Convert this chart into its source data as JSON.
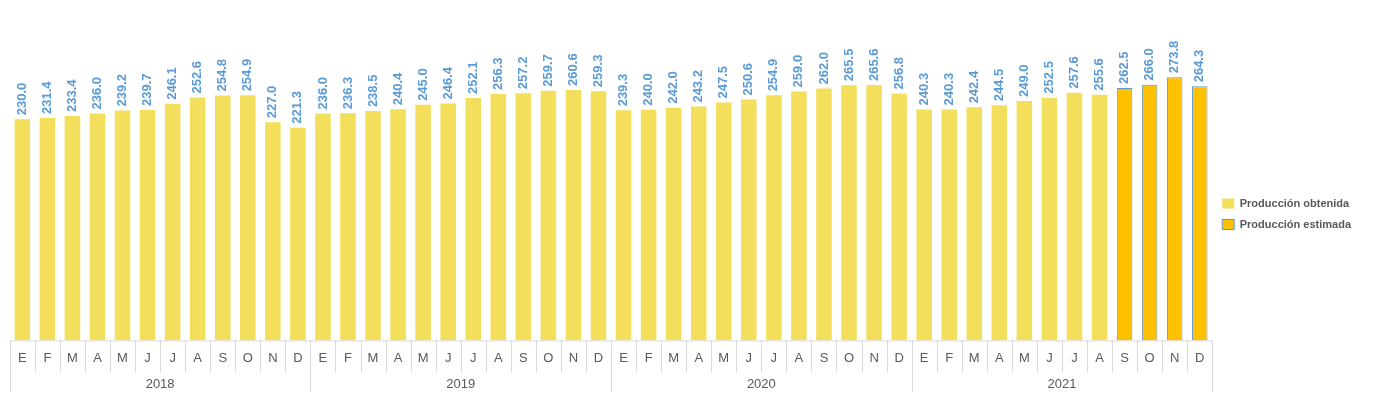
{
  "chart_data": {
    "type": "bar",
    "categories": [
      "E",
      "F",
      "M",
      "A",
      "M",
      "J",
      "J",
      "A",
      "S",
      "O",
      "N",
      "D",
      "E",
      "F",
      "M",
      "A",
      "M",
      "J",
      "J",
      "A",
      "S",
      "O",
      "N",
      "D",
      "E",
      "F",
      "M",
      "A",
      "M",
      "J",
      "J",
      "A",
      "S",
      "O",
      "N",
      "D",
      "E",
      "F",
      "M",
      "A",
      "M",
      "J",
      "J",
      "A",
      "S",
      "O",
      "N",
      "D"
    ],
    "series": [
      {
        "name": "Producción obtenida",
        "color": "#f3df5c",
        "values": [
          230.0,
          231.4,
          233.4,
          236.0,
          239.2,
          239.7,
          246.1,
          252.6,
          254.8,
          254.9,
          227.0,
          221.3,
          236.0,
          236.3,
          238.5,
          240.4,
          245.0,
          246.4,
          252.1,
          256.3,
          257.2,
          259.7,
          260.6,
          259.3,
          239.3,
          240.0,
          242.0,
          243.2,
          247.5,
          250.6,
          254.9,
          259.0,
          262.0,
          265.5,
          265.6,
          256.8,
          240.3,
          240.3,
          242.4,
          244.5,
          249.0,
          252.5,
          257.6,
          255.6,
          null,
          null,
          null,
          null
        ],
        "value_labels": [
          "230.0",
          "231.4",
          "233.4",
          "236.0",
          "239.2",
          "239.7",
          "246.1",
          "252.6",
          "254.8",
          "254.9",
          "227.0",
          "221.3",
          "236.0",
          "236.3",
          "238.5",
          "240.4",
          "245.0",
          "246.4",
          "252.1",
          "256.3",
          "257.2",
          "259.7",
          "260.6",
          "259.3",
          "239.3",
          "240.0",
          "242.0",
          "243.2",
          "247.5",
          "250.6",
          "254.9",
          "259.0",
          "262.0",
          "265.5",
          "265.6",
          "256.8",
          "240.3",
          "240.3",
          "242.4",
          "244.5",
          "249.0",
          "252.5",
          "257.6",
          "255.6",
          null,
          null,
          null,
          null
        ]
      },
      {
        "name": "Producción estimada",
        "color": "#ffc000",
        "values": [
          null,
          null,
          null,
          null,
          null,
          null,
          null,
          null,
          null,
          null,
          null,
          null,
          null,
          null,
          null,
          null,
          null,
          null,
          null,
          null,
          null,
          null,
          null,
          null,
          null,
          null,
          null,
          null,
          null,
          null,
          null,
          null,
          null,
          null,
          null,
          null,
          null,
          null,
          null,
          null,
          null,
          null,
          null,
          null,
          262.5,
          266.0,
          273.8,
          264.3
        ],
        "value_labels": [
          null,
          null,
          null,
          null,
          null,
          null,
          null,
          null,
          null,
          null,
          null,
          null,
          null,
          null,
          null,
          null,
          null,
          null,
          null,
          null,
          null,
          null,
          null,
          null,
          null,
          null,
          null,
          null,
          null,
          null,
          null,
          null,
          null,
          null,
          null,
          null,
          null,
          null,
          null,
          null,
          null,
          null,
          null,
          null,
          "262.5",
          "266.0",
          "273.8",
          "264.3"
        ]
      }
    ],
    "legend": "right",
    "grid": false,
    "annotations": [
      "2018",
      "2019",
      "2020",
      "2021"
    ]
  }
}
